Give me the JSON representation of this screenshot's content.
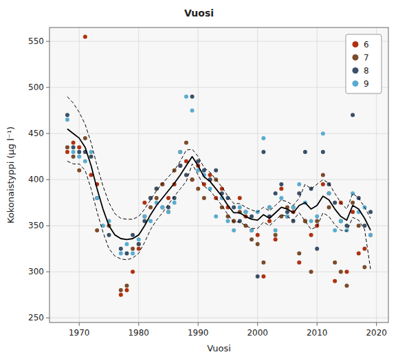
{
  "chart_data": {
    "type": "scatter",
    "title": "Vuosi",
    "x_label": "Vuosi",
    "y_label": "Kokonaistyppi (μg l⁻¹)",
    "xlim": [
      1965,
      2022
    ],
    "ylim": [
      245,
      565
    ],
    "xticks": [
      1970,
      1980,
      1990,
      2000,
      2010,
      2020
    ],
    "yticks": [
      250,
      300,
      350,
      400,
      450,
      500,
      550
    ],
    "grid": true,
    "legend": "upper right",
    "series": [
      {
        "name": "6",
        "type": "scatter",
        "color": "#B03010",
        "x": [
          1968,
          1969,
          1970,
          1971,
          1972,
          1973,
          1977,
          1978,
          1979,
          1980,
          1981,
          1982,
          1983,
          1984,
          1985,
          1986,
          1987,
          1988,
          1989,
          1990,
          1991,
          1992,
          1993,
          1994,
          1995,
          1996,
          1997,
          1998,
          1999,
          2000,
          2001,
          2002,
          2003,
          2004,
          2005,
          2006,
          2007,
          2008,
          2009,
          2010,
          2011,
          2012,
          2013,
          2014,
          2015,
          2016,
          2017,
          2018,
          2019
        ],
        "values": [
          430,
          440,
          435,
          555,
          405,
          395,
          275,
          280,
          300,
          325,
          375,
          380,
          390,
          395,
          380,
          395,
          415,
          420,
          400,
          415,
          395,
          405,
          380,
          390,
          370,
          355,
          380,
          360,
          345,
          340,
          295,
          355,
          335,
          390,
          360,
          365,
          310,
          355,
          340,
          350,
          395,
          385,
          290,
          375,
          300,
          365,
          320,
          325,
          340
        ]
      },
      {
        "name": "7",
        "type": "scatter",
        "color": "#7B4B2A",
        "x": [
          1968,
          1969,
          1970,
          1971,
          1973,
          1975,
          1977,
          1978,
          1979,
          1980,
          1981,
          1982,
          1983,
          1984,
          1985,
          1986,
          1987,
          1988,
          1989,
          1990,
          1991,
          1992,
          1993,
          1994,
          1995,
          1996,
          1997,
          1998,
          1999,
          2000,
          2001,
          2002,
          2003,
          2004,
          2005,
          2006,
          2007,
          2008,
          2009,
          2010,
          2011,
          2012,
          2013,
          2014,
          2015,
          2016,
          2017,
          2018
        ],
        "values": [
          435,
          425,
          410,
          445,
          345,
          350,
          280,
          285,
          325,
          330,
          360,
          370,
          380,
          395,
          365,
          410,
          430,
          440,
          400,
          390,
          380,
          400,
          400,
          370,
          360,
          355,
          365,
          350,
          335,
          330,
          310,
          370,
          340,
          360,
          370,
          370,
          320,
          355,
          300,
          355,
          405,
          370,
          310,
          300,
          285,
          375,
          350,
          305
        ]
      },
      {
        "name": "8",
        "type": "scatter",
        "color": "#3A5068",
        "x": [
          1968,
          1969,
          1970,
          1971,
          1972,
          1973,
          1975,
          1977,
          1978,
          1979,
          1980,
          1981,
          1982,
          1983,
          1984,
          1985,
          1986,
          1987,
          1988,
          1989,
          1990,
          1991,
          1992,
          1993,
          1994,
          1995,
          1996,
          1997,
          1998,
          1999,
          2000,
          2001,
          2002,
          2003,
          2004,
          2005,
          2006,
          2007,
          2008,
          2009,
          2010,
          2011,
          2012,
          2013,
          2014,
          2015,
          2016,
          2017,
          2018,
          2019
        ],
        "values": [
          470,
          435,
          430,
          430,
          425,
          380,
          340,
          325,
          320,
          340,
          330,
          355,
          380,
          390,
          370,
          370,
          380,
          415,
          405,
          490,
          420,
          410,
          400,
          410,
          385,
          380,
          370,
          355,
          365,
          360,
          295,
          430,
          360,
          385,
          395,
          365,
          355,
          385,
          430,
          390,
          325,
          430,
          395,
          375,
          355,
          350,
          470,
          380,
          350,
          365
        ]
      },
      {
        "name": "9",
        "type": "scatter",
        "color": "#5AACCF",
        "x": [
          1968,
          1969,
          1970,
          1971,
          1972,
          1973,
          1974,
          1975,
          1977,
          1978,
          1979,
          1980,
          1981,
          1982,
          1983,
          1984,
          1985,
          1986,
          1987,
          1988,
          1989,
          1990,
          1991,
          1992,
          1993,
          1994,
          1995,
          1996,
          1997,
          1998,
          1999,
          2000,
          2001,
          2002,
          2003,
          2004,
          2005,
          2006,
          2007,
          2008,
          2009,
          2010,
          2011,
          2012,
          2013,
          2014,
          2015,
          2016,
          2017,
          2018,
          2019
        ],
        "values": [
          465,
          430,
          425,
          420,
          430,
          380,
          350,
          355,
          320,
          330,
          320,
          335,
          360,
          355,
          375,
          370,
          365,
          375,
          430,
          490,
          475,
          410,
          405,
          390,
          360,
          380,
          355,
          345,
          370,
          365,
          345,
          365,
          445,
          370,
          345,
          380,
          360,
          370,
          395,
          375,
          355,
          360,
          450,
          385,
          345,
          355,
          345,
          385,
          365,
          370,
          340
        ]
      },
      {
        "type": "line",
        "color": "#000000",
        "line_style": "dashed",
        "x": [
          1968,
          1969,
          1970,
          1971,
          1972,
          1973,
          1974,
          1975,
          1976,
          1977,
          1978,
          1979,
          1980,
          1981,
          1982,
          1983,
          1984,
          1985,
          1986,
          1987,
          1988,
          1989,
          1990,
          1991,
          1992,
          1993,
          1994,
          1995,
          1996,
          1997,
          1998,
          1999,
          2000,
          2001,
          2002,
          2003,
          2004,
          2005,
          2006,
          2007,
          2008,
          2009,
          2010,
          2011,
          2012,
          2013,
          2014,
          2015,
          2016,
          2017,
          2018,
          2019
        ],
        "values": [
          490,
          483,
          473,
          460,
          440,
          415,
          393,
          375,
          363,
          358,
          357,
          357,
          360,
          368,
          378,
          388,
          396,
          403,
          410,
          420,
          432,
          433,
          425,
          413,
          408,
          400,
          392,
          382,
          374,
          374,
          370,
          367,
          365,
          370,
          366,
          372,
          378,
          376,
          372,
          380,
          395,
          390,
          395,
          400,
          396,
          385,
          375,
          368,
          385,
          380,
          370,
          358
        ]
      },
      {
        "type": "line",
        "color": "#000000",
        "line_style": "dashed",
        "x": [
          1968,
          1969,
          1970,
          1971,
          1972,
          1973,
          1974,
          1975,
          1976,
          1977,
          1978,
          1979,
          1980,
          1981,
          1982,
          1983,
          1984,
          1985,
          1986,
          1987,
          1988,
          1989,
          1990,
          1991,
          1992,
          1993,
          1994,
          1995,
          1996,
          1997,
          1998,
          1999,
          2000,
          2001,
          2002,
          2003,
          2004,
          2005,
          2006,
          2007,
          2008,
          2009,
          2010,
          2011,
          2012,
          2013,
          2014,
          2015,
          2016,
          2017,
          2018,
          2019
        ],
        "values": [
          420,
          417,
          417,
          410,
          390,
          365,
          343,
          325,
          317,
          314,
          313,
          315,
          320,
          332,
          346,
          356,
          364,
          373,
          382,
          390,
          398,
          417,
          405,
          393,
          388,
          380,
          372,
          362,
          354,
          354,
          350,
          347,
          347,
          354,
          350,
          356,
          362,
          360,
          356,
          364,
          355,
          346,
          349,
          364,
          360,
          351,
          345,
          344,
          359,
          356,
          346,
          303
        ]
      },
      {
        "type": "line",
        "color": "#000000",
        "line_style": "solid",
        "x": [
          1968,
          1969,
          1970,
          1971,
          1972,
          1973,
          1974,
          1975,
          1976,
          1977,
          1978,
          1979,
          1980,
          1981,
          1982,
          1983,
          1984,
          1985,
          1986,
          1987,
          1988,
          1989,
          1990,
          1991,
          1992,
          1993,
          1994,
          1995,
          1996,
          1997,
          1998,
          1999,
          2000,
          2001,
          2002,
          2003,
          2004,
          2005,
          2006,
          2007,
          2008,
          2009,
          2010,
          2011,
          2012,
          2013,
          2014,
          2015,
          2016,
          2017,
          2018,
          2019
        ],
        "values": [
          455,
          450,
          445,
          435,
          415,
          390,
          368,
          350,
          340,
          336,
          335,
          336,
          340,
          350,
          362,
          372,
          380,
          388,
          396,
          405,
          415,
          425,
          415,
          403,
          398,
          390,
          382,
          372,
          364,
          364,
          360,
          357,
          356,
          362,
          358,
          364,
          370,
          368,
          364,
          372,
          375,
          368,
          372,
          382,
          378,
          368,
          360,
          356,
          372,
          368,
          358,
          345
        ]
      }
    ]
  }
}
